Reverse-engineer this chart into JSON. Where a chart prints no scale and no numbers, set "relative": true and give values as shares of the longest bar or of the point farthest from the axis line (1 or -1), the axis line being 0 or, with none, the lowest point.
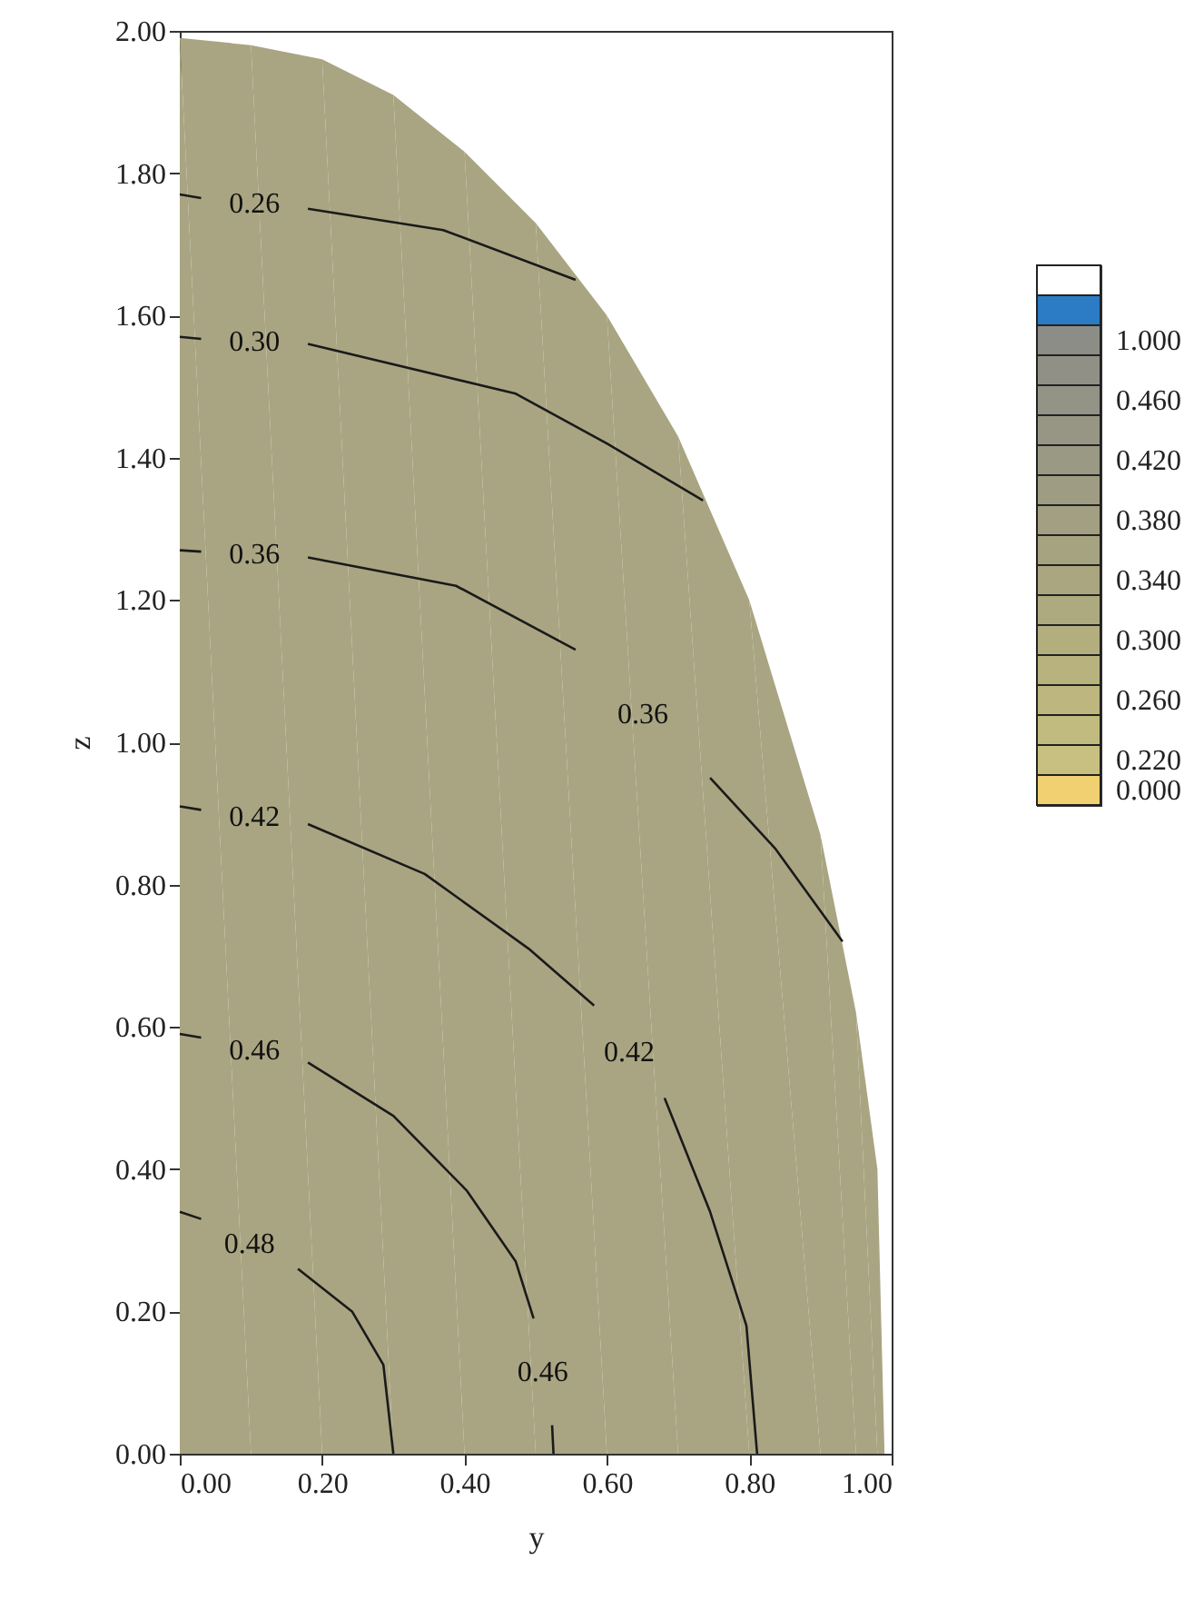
{
  "chart_data": [
    {
      "type": "line",
      "xlabel": "y",
      "ylabel": "z",
      "xlim": [
        0,
        1
      ],
      "ylim": [
        0,
        2
      ],
      "xticks": [
        {
          "value": 0,
          "label": "0.00"
        },
        {
          "value": 0.2,
          "label": "0.20"
        },
        {
          "value": 0.4,
          "label": "0.40"
        },
        {
          "value": 0.6,
          "label": "0.60"
        },
        {
          "value": 0.8,
          "label": "0.80"
        },
        {
          "value": 1,
          "label": "1.00"
        }
      ],
      "yticks": [
        {
          "value": 0,
          "label": "0.00"
        },
        {
          "value": 0.2,
          "label": "0.20"
        },
        {
          "value": 0.4,
          "label": "0.40"
        },
        {
          "value": 0.6,
          "label": "0.60"
        },
        {
          "value": 0.8,
          "label": "0.80"
        },
        {
          "value": 1,
          "label": "1.00"
        },
        {
          "value": 1.2,
          "label": "1.20"
        },
        {
          "value": 1.4,
          "label": "1.40"
        },
        {
          "value": 1.6,
          "label": "1.60"
        },
        {
          "value": 1.8,
          "label": "1.80"
        },
        {
          "value": 2,
          "label": "2.00"
        }
      ],
      "series": [
        {
          "type": "area",
          "color": "#a9a582",
          "x": [
            0,
            0.1,
            0.2,
            0.3,
            0.4,
            0.5,
            0.6,
            0.7,
            0.8,
            0.9,
            0.95,
            0.98,
            0.99
          ],
          "values": [
            1.99,
            1.98,
            1.96,
            1.91,
            1.83,
            1.73,
            1.6,
            1.43,
            1.2,
            0.87,
            0.62,
            0.4,
            0
          ]
        },
        {
          "name": "0.26",
          "color": "#1a1a1a",
          "x": [
            0,
            0.03,
            0.1,
            0.18,
            0.37,
            0.556
          ],
          "values": [
            1.77,
            1.765,
            null,
            1.75,
            1.72,
            1.65
          ]
        },
        {
          "name": "0.30",
          "color": "#1a1a1a",
          "x": [
            0,
            0.03,
            0.1,
            0.18,
            0.472,
            0.6,
            0.735
          ],
          "values": [
            1.57,
            1.567,
            null,
            1.56,
            1.49,
            1.42,
            1.34
          ]
        },
        {
          "name": "0.36",
          "color": "#1a1a1a",
          "x": [
            0,
            0.03,
            0.1,
            0.18,
            0.388,
            0.556,
            0.66,
            0.745,
            0.837,
            0.931
          ],
          "values": [
            1.27,
            1.268,
            null,
            1.26,
            1.22,
            1.13,
            null,
            0.95,
            0.85,
            0.72
          ]
        },
        {
          "name": "0.42",
          "color": "#1a1a1a",
          "x": [
            0,
            0.03,
            0.1,
            0.18,
            0.344,
            0.49,
            0.582,
            0.63,
            0.681,
            0.745,
            0.796,
            0.811
          ],
          "values": [
            0.91,
            0.905,
            null,
            0.885,
            0.815,
            0.71,
            0.63,
            null,
            0.5,
            0.34,
            0.18,
            0
          ]
        },
        {
          "name": "0.46",
          "color": "#1a1a1a",
          "x": [
            0,
            0.03,
            0.1,
            0.18,
            0.3,
            0.403,
            0.472,
            0.497,
            0.51,
            0.523,
            0.525
          ],
          "values": [
            0.59,
            0.585,
            null,
            0.55,
            0.475,
            0.37,
            0.27,
            0.19,
            null,
            0.04,
            0
          ]
        },
        {
          "name": "0.48",
          "color": "#1a1a1a",
          "x": [
            0,
            0.03,
            0.1,
            0.166,
            0.242,
            0.286,
            0.3
          ],
          "values": [
            0.34,
            0.33,
            null,
            0.26,
            0.2,
            0.125,
            0
          ]
        }
      ]
    },
    {
      "type": "bar",
      "orientation": "horizontal",
      "relative": true,
      "categories": [
        null,
        null,
        "1.000",
        null,
        "0.460",
        null,
        "0.420",
        null,
        "0.380",
        null,
        "0.340",
        null,
        "0.300",
        null,
        "0.260",
        null,
        "0.220",
        "0.000"
      ],
      "values": [
        1,
        1,
        1,
        1,
        1,
        1,
        1,
        1,
        1,
        1,
        1,
        1,
        1,
        1,
        1,
        1,
        1,
        1
      ],
      "colors": [
        "#ffffff",
        "#2b7cc4",
        "#8d8d88",
        "#909087",
        "#939386",
        "#979685",
        "#9a9984",
        "#9e9c83",
        "#a29f82",
        "#a6a381",
        "#aaa680",
        "#aeaa7f",
        "#b3ae7e",
        "#b8b27e",
        "#bdb67e",
        "#c2bb7f",
        "#c8c080",
        "#f0d070"
      ]
    }
  ]
}
